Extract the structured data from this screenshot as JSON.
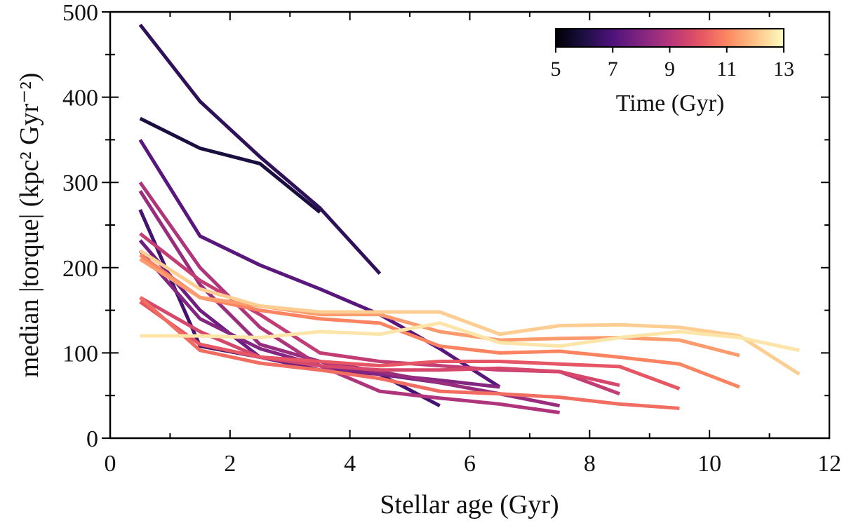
{
  "chart_data": {
    "type": "line",
    "xlabel": "Stellar age (Gyr)",
    "ylabel": "median |torque| (kpc² Gyr⁻²)",
    "xlim": [
      0,
      12
    ],
    "ylim": [
      0,
      500
    ],
    "xticks": [
      "0",
      "2",
      "4",
      "6",
      "8",
      "10",
      "12"
    ],
    "yticks": [
      "0",
      "100",
      "200",
      "300",
      "400",
      "500"
    ],
    "colorbar": {
      "label": "Time (Gyr)",
      "range": [
        5,
        13
      ],
      "ticks": [
        "5",
        "7",
        "9",
        "11",
        "13"
      ],
      "colormap": "magma",
      "placement": "top-right"
    },
    "series": [
      {
        "time": 5.0,
        "x": [
          0.5,
          1.5,
          2.5,
          3.5
        ],
        "y": [
          375,
          340,
          322,
          265
        ]
      },
      {
        "time": 5.5,
        "x": [
          0.5,
          1.5,
          2.5,
          3.5,
          4.5
        ],
        "y": [
          485,
          395,
          330,
          270,
          193
        ]
      },
      {
        "time": 6.0,
        "x": [
          0.5,
          1.5,
          2.5,
          3.5,
          4.5,
          5.5
        ],
        "y": [
          268,
          108,
          95,
          90,
          75,
          38
        ]
      },
      {
        "time": 6.5,
        "x": [
          0.5,
          1.5,
          2.5,
          3.5,
          4.5,
          5.5,
          6.5
        ],
        "y": [
          350,
          237,
          203,
          175,
          145,
          105,
          60
        ]
      },
      {
        "time": 7.0,
        "x": [
          0.5,
          1.5,
          2.5,
          3.5,
          4.5,
          5.5
        ],
        "y": [
          232,
          150,
          95,
          80,
          75,
          65
        ]
      },
      {
        "time": 7.5,
        "x": [
          0.5,
          1.5,
          2.5,
          3.5,
          4.5,
          5.5,
          6.5
        ],
        "y": [
          220,
          140,
          105,
          85,
          75,
          68,
          60
        ]
      },
      {
        "time": 8.0,
        "x": [
          0.5,
          1.5,
          2.5,
          3.5,
          4.5,
          5.5,
          6.5,
          7.5
        ],
        "y": [
          290,
          180,
          110,
          90,
          78,
          65,
          52,
          38
        ]
      },
      {
        "time": 8.5,
        "x": [
          0.5,
          1.5,
          2.5,
          3.5,
          4.5,
          5.5,
          6.5,
          7.5
        ],
        "y": [
          300,
          200,
          130,
          85,
          55,
          47,
          40,
          30
        ]
      },
      {
        "time": 9.0,
        "x": [
          0.5,
          1.5,
          2.5,
          3.5,
          4.5,
          5.5,
          6.5,
          7.5,
          8.5
        ],
        "y": [
          240,
          185,
          145,
          100,
          90,
          85,
          80,
          78,
          52
        ]
      },
      {
        "time": 9.5,
        "x": [
          0.5,
          1.5,
          2.5,
          3.5,
          4.5,
          5.5,
          6.5,
          7.5,
          8.5
        ],
        "y": [
          165,
          125,
          95,
          85,
          80,
          80,
          82,
          78,
          62
        ]
      },
      {
        "time": 10.0,
        "x": [
          0.5,
          1.5,
          2.5,
          3.5,
          4.5,
          5.5,
          6.5,
          7.5,
          8.5,
          9.5
        ],
        "y": [
          160,
          110,
          95,
          90,
          85,
          90,
          90,
          87,
          84,
          58
        ]
      },
      {
        "time": 10.5,
        "x": [
          0.5,
          1.5,
          2.5,
          3.5,
          4.5,
          5.5,
          6.5,
          7.5,
          8.5,
          9.5
        ],
        "y": [
          165,
          103,
          88,
          80,
          70,
          55,
          52,
          48,
          40,
          35
        ]
      },
      {
        "time": 11.0,
        "x": [
          0.5,
          1.5,
          2.5,
          3.5,
          4.5,
          5.5,
          6.5,
          7.5,
          8.5,
          9.5,
          10.5
        ],
        "y": [
          215,
          165,
          150,
          140,
          135,
          108,
          100,
          102,
          95,
          87,
          60
        ]
      },
      {
        "time": 11.5,
        "x": [
          0.5,
          1.5,
          2.5,
          3.5,
          4.5,
          5.5,
          6.5,
          7.5,
          8.5,
          9.5,
          10.5
        ],
        "y": [
          210,
          165,
          155,
          145,
          145,
          125,
          115,
          117,
          118,
          115,
          97
        ]
      },
      {
        "time": 12.5,
        "x": [
          0.5,
          1.5,
          2.5,
          3.5,
          4.5,
          5.5,
          6.5,
          7.5,
          8.5,
          9.5,
          10.5,
          11.5
        ],
        "y": [
          220,
          175,
          155,
          148,
          148,
          148,
          122,
          132,
          133,
          130,
          120,
          75
        ]
      },
      {
        "time": 13.0,
        "x": [
          0.5,
          1.5,
          2.5,
          3.5,
          4.5,
          5.5,
          6.5,
          7.5,
          8.5,
          9.5,
          10.5,
          11.5
        ],
        "y": [
          120,
          120,
          118,
          125,
          122,
          135,
          112,
          108,
          118,
          125,
          118,
          103
        ]
      }
    ]
  }
}
